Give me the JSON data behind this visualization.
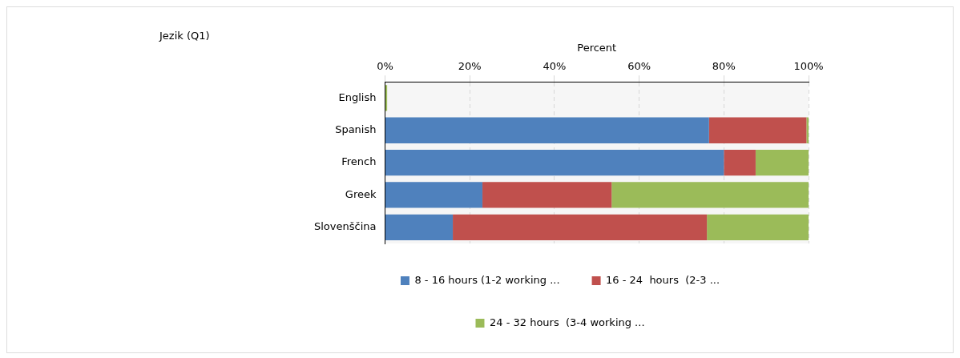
{
  "chart_data": {
    "type": "bar",
    "orientation": "horizontal",
    "stacked": true,
    "title": "Jezik (Q1)",
    "xlabel": "Percent",
    "categories": [
      "English",
      "Spanish",
      "French",
      "Greek",
      "Slovenščina"
    ],
    "series": [
      {
        "name": "8 - 16 hours (1-2 working ...",
        "color": "#4f81bd",
        "values": [
          0,
          76.5,
          80,
          23,
          16
        ]
      },
      {
        "name": "16 - 24  hours  (2-3 ...",
        "color": "#c0504d",
        "values": [
          0,
          23,
          7.5,
          30.5,
          60
        ]
      },
      {
        "name": "24 - 32 hours  (3-4 working ...",
        "color": "#9bbb59",
        "values": [
          0.5,
          0.5,
          12.5,
          46.5,
          24
        ]
      }
    ],
    "xlim": [
      0,
      100
    ],
    "xticks": [
      {
        "value": 0,
        "label": "0%"
      },
      {
        "value": 20,
        "label": "20%"
      },
      {
        "value": 40,
        "label": "40%"
      },
      {
        "value": 60,
        "label": "60%"
      },
      {
        "value": 80,
        "label": "80%"
      },
      {
        "value": 100,
        "label": "100%"
      }
    ],
    "grid": "x",
    "legend": "bottom"
  }
}
